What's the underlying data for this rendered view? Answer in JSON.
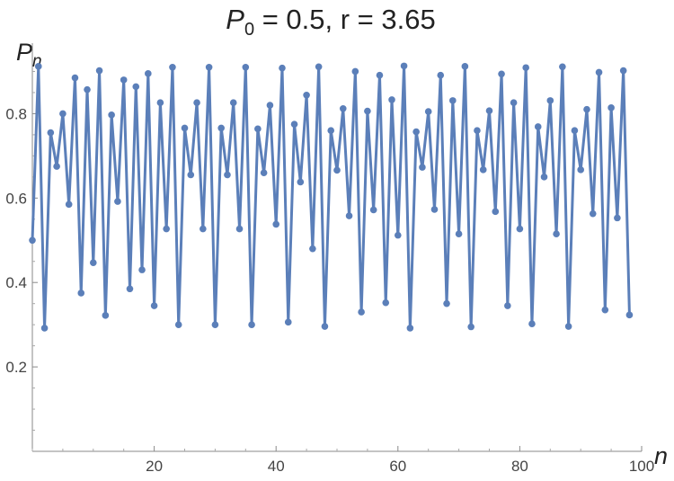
{
  "chart_data": {
    "type": "line",
    "title": "P₀ = 0.5, r = 3.65",
    "title_parts": {
      "p": "P",
      "sub": "0",
      "rest": " = 0.5, r = 3.65"
    },
    "ylabel": {
      "p": "P",
      "sub": "n"
    },
    "xlabel": "n",
    "xlim": [
      0,
      100
    ],
    "ylim": [
      0,
      0.95
    ],
    "x_ticks": [
      20,
      40,
      60,
      80,
      100
    ],
    "y_ticks": [
      0.2,
      0.4,
      0.6,
      0.8
    ],
    "x_tick_labels": [
      "20",
      "40",
      "60",
      "80",
      "100"
    ],
    "y_tick_labels": [
      "0.2",
      "0.4",
      "0.6",
      "0.8"
    ],
    "grid": false,
    "series": [
      {
        "color": "#5b7fb9",
        "markers": true,
        "x": [
          0,
          1,
          2,
          3,
          4,
          5,
          6,
          7,
          8,
          9,
          10,
          11,
          12,
          13,
          14,
          15,
          16,
          17,
          18,
          19,
          20,
          21,
          22,
          23,
          24,
          25,
          26,
          27,
          28,
          29,
          30,
          31,
          32,
          33,
          34,
          35,
          36,
          37,
          38,
          39,
          40,
          41,
          42,
          43,
          44,
          45,
          46,
          47,
          48,
          49,
          50,
          51,
          52,
          53,
          54,
          55,
          56,
          57,
          58,
          59,
          60,
          61,
          62,
          63,
          64,
          65,
          66,
          67,
          68,
          69,
          70,
          71,
          72,
          73,
          74,
          75,
          76,
          77,
          78,
          79,
          80,
          81,
          82,
          83,
          84,
          85,
          86,
          87,
          88,
          89,
          90,
          91,
          92,
          93,
          94,
          95,
          96,
          97,
          98
        ],
        "y": [
          0.5,
          0.912,
          0.292,
          0.755,
          0.675,
          0.8,
          0.585,
          0.885,
          0.375,
          0.857,
          0.447,
          0.902,
          0.322,
          0.797,
          0.592,
          0.88,
          0.385,
          0.864,
          0.43,
          0.895,
          0.345,
          0.826,
          0.527,
          0.91,
          0.3,
          0.766,
          0.655,
          0.826,
          0.527,
          0.91,
          0.3,
          0.766,
          0.655,
          0.826,
          0.527,
          0.91,
          0.3,
          0.764,
          0.66,
          0.82,
          0.538,
          0.908,
          0.306,
          0.775,
          0.638,
          0.844,
          0.48,
          0.911,
          0.296,
          0.76,
          0.666,
          0.812,
          0.558,
          0.9,
          0.33,
          0.806,
          0.572,
          0.891,
          0.352,
          0.833,
          0.512,
          0.913,
          0.292,
          0.757,
          0.673,
          0.805,
          0.573,
          0.891,
          0.35,
          0.831,
          0.515,
          0.912,
          0.295,
          0.76,
          0.667,
          0.807,
          0.568,
          0.894,
          0.345,
          0.826,
          0.527,
          0.909,
          0.302,
          0.769,
          0.65,
          0.831,
          0.515,
          0.911,
          0.296,
          0.76,
          0.667,
          0.81,
          0.563,
          0.898,
          0.335,
          0.814,
          0.553,
          0.902,
          0.323
        ]
      }
    ]
  }
}
